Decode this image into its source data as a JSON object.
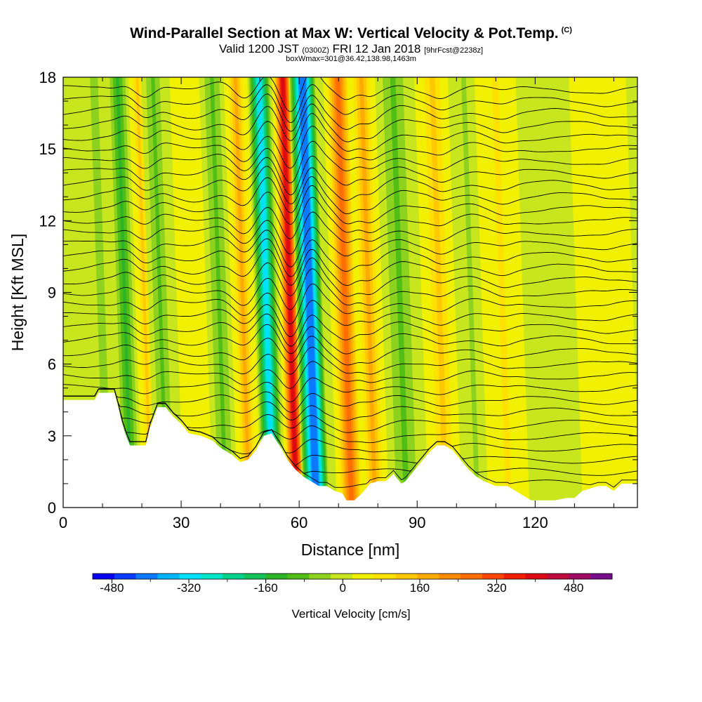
{
  "header": {
    "title": "Wind-Parallel Section at Max W: Vertical Velocity & Pot.Temp.",
    "title_tag": "(C)",
    "valid_main": "Valid 1200 JST",
    "valid_utc": "(0300Z)",
    "valid_date": "FRI 12 Jan 2018",
    "valid_fcst": "[9hrFcst@2238z]",
    "box_info": "boxWmax=301@36.42,138.98,1463m"
  },
  "chart_data": {
    "type": "heatmap",
    "xlabel": "Distance [nm]",
    "ylabel": "Height [Kft MSL]",
    "xlim": [
      0,
      146
    ],
    "ylim": [
      0,
      18
    ],
    "x_ticks": [
      0,
      30,
      60,
      90,
      120
    ],
    "y_ticks": [
      0,
      3,
      6,
      9,
      12,
      15,
      18
    ],
    "colorbar": {
      "title": "Vertical Velocity [cm/s]",
      "ticks": [
        -480,
        -320,
        -160,
        0,
        160,
        320,
        480
      ],
      "range": [
        -520,
        560
      ],
      "colors": [
        "#0a00f0",
        "#0a3cff",
        "#0a78ff",
        "#00b4ff",
        "#00e1ff",
        "#00e6c8",
        "#00d28c",
        "#14c35a",
        "#2db428",
        "#50be14",
        "#8cd21e",
        "#c8e61e",
        "#f0f000",
        "#ffe100",
        "#ffc800",
        "#ffaa00",
        "#ff8c00",
        "#ff6e00",
        "#ff4600",
        "#f01e00",
        "#dc0a14",
        "#be0a3c",
        "#a00a64",
        "#780a8c"
      ]
    },
    "terrain_kft": [
      [
        0,
        4.5
      ],
      [
        8,
        4.5
      ],
      [
        9,
        4.8
      ],
      [
        13,
        4.8
      ],
      [
        14,
        4.2
      ],
      [
        15,
        3.5
      ],
      [
        16,
        3
      ],
      [
        17,
        2.6
      ],
      [
        21,
        2.6
      ],
      [
        22,
        3.3
      ],
      [
        24,
        4.2
      ],
      [
        26,
        4.2
      ],
      [
        28,
        3.8
      ],
      [
        30,
        3.5
      ],
      [
        32,
        3.1
      ],
      [
        35,
        3
      ],
      [
        38,
        2.8
      ],
      [
        40,
        2.5
      ],
      [
        43,
        2.2
      ],
      [
        45,
        1.9
      ],
      [
        47,
        2
      ],
      [
        49,
        2.4
      ],
      [
        51,
        3
      ],
      [
        53,
        3.1
      ],
      [
        55,
        2.6
      ],
      [
        57,
        2
      ],
      [
        59,
        1.6
      ],
      [
        61,
        1.3
      ],
      [
        63,
        1.1
      ],
      [
        65,
        0.9
      ],
      [
        67,
        0.9
      ],
      [
        69,
        0.7
      ],
      [
        71,
        0.6
      ],
      [
        72,
        0.3
      ],
      [
        74,
        0.3
      ],
      [
        76,
        0.6
      ],
      [
        78,
        1
      ],
      [
        80,
        1.1
      ],
      [
        82,
        1.1
      ],
      [
        84,
        1.4
      ],
      [
        85,
        1.2
      ],
      [
        86,
        1
      ],
      [
        87,
        1.1
      ],
      [
        89,
        1.5
      ],
      [
        91,
        1.9
      ],
      [
        93,
        2.3
      ],
      [
        95,
        2.6
      ],
      [
        97,
        2.6
      ],
      [
        99,
        2.4
      ],
      [
        101,
        2
      ],
      [
        103,
        1.6
      ],
      [
        105,
        1.3
      ],
      [
        107,
        1.1
      ],
      [
        110,
        0.9
      ],
      [
        113,
        0.9
      ],
      [
        116,
        0.6
      ],
      [
        119,
        0.3
      ],
      [
        122,
        0.3
      ],
      [
        125,
        0.3
      ],
      [
        128,
        0.4
      ],
      [
        130,
        0.4
      ],
      [
        132,
        0.7
      ],
      [
        134,
        0.8
      ],
      [
        136,
        0.9
      ],
      [
        138,
        0.9
      ],
      [
        140,
        0.7
      ],
      [
        142,
        1
      ],
      [
        146,
        1
      ]
    ],
    "w_cms": [
      {
        "x": 10,
        "value": -40
      },
      {
        "x": 16,
        "value": -120
      },
      {
        "x": 21,
        "value": 120
      },
      {
        "x": 25,
        "value": -80
      },
      {
        "x": 33,
        "value": 40
      },
      {
        "x": 40,
        "value": -80
      },
      {
        "x": 46,
        "value": 200
      },
      {
        "x": 52,
        "value": -330
      },
      {
        "x": 58,
        "value": 420
      },
      {
        "x": 63,
        "value": -430
      },
      {
        "x": 72,
        "value": 260
      },
      {
        "x": 78,
        "value": 200
      },
      {
        "x": 86,
        "value": -80
      },
      {
        "x": 96,
        "value": 120
      },
      {
        "x": 104,
        "value": -60
      },
      {
        "x": 112,
        "value": 80
      },
      {
        "x": 125,
        "value": -20
      },
      {
        "x": 138,
        "value": 40
      }
    ]
  }
}
